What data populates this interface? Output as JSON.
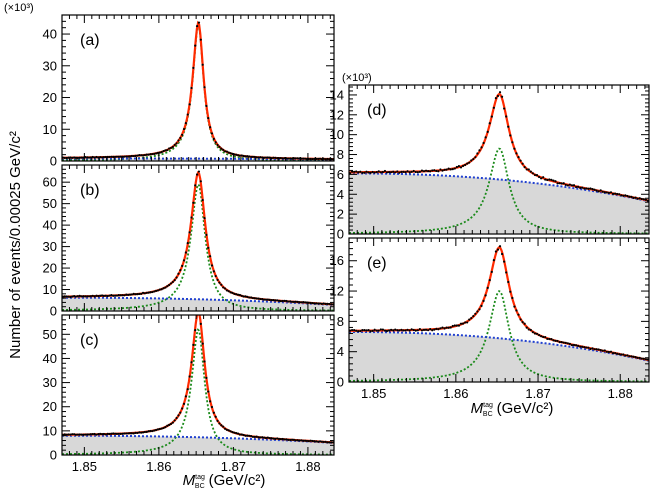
{
  "y_axis_title": "Number of events/0.00025 GeV/c²",
  "x_axis_title": "M",
  "x_axis_sup": "tag",
  "x_axis_sub": "BC",
  "x_axis_unit": "(GeV/c²)",
  "multiplier_label": "(×10³)",
  "colors": {
    "data": "#000000",
    "fit": "#ff2a00",
    "signal": "#1a8a1a",
    "background": "#2040d0",
    "fill": "#d8d8d8"
  },
  "chart_data": [
    {
      "id": "a",
      "label": "(a)",
      "type": "line",
      "xlim": [
        1.847,
        1.8835
      ],
      "xticks": [
        1.85,
        1.86,
        1.87,
        1.88
      ],
      "xtick_labels": [],
      "ylim": [
        0,
        46
      ],
      "yticks": [
        0,
        10,
        20,
        30,
        40
      ],
      "multiplier": "(×10³)",
      "series": [
        {
          "name": "data",
          "peak": 43.5,
          "bg_at_low": 0.8,
          "bg_at_high": 0.5
        },
        {
          "name": "signal",
          "peak": 42.8,
          "width": 0.00085
        },
        {
          "name": "background",
          "at_low": 0.8,
          "at_high": 0.5
        }
      ]
    },
    {
      "id": "b",
      "label": "(b)",
      "type": "line",
      "xlim": [
        1.847,
        1.8835
      ],
      "xticks": [
        1.85,
        1.86,
        1.87,
        1.88
      ],
      "xtick_labels": [],
      "ylim": [
        0,
        68
      ],
      "yticks": [
        0,
        10,
        20,
        30,
        40,
        50,
        60
      ],
      "multiplier": "",
      "series": [
        {
          "name": "data",
          "peak": 64.5
        },
        {
          "name": "signal",
          "peak": 59.0,
          "width": 0.0011
        },
        {
          "name": "background",
          "at_low": 6.2,
          "at_high": 2.8
        }
      ]
    },
    {
      "id": "c",
      "label": "(c)",
      "type": "line",
      "xlim": [
        1.847,
        1.8835
      ],
      "xticks": [
        1.85,
        1.86,
        1.87,
        1.88
      ],
      "xtick_labels": [
        "1.85",
        "1.86",
        "1.87",
        "1.88"
      ],
      "ylim": [
        0,
        58
      ],
      "yticks": [
        0,
        10,
        20,
        30,
        40,
        50
      ],
      "multiplier": "",
      "series": [
        {
          "name": "data",
          "peak": 58.0
        },
        {
          "name": "signal",
          "peak": 52.0,
          "width": 0.001
        },
        {
          "name": "background",
          "at_low": 8.0,
          "at_high": 5.0
        }
      ]
    },
    {
      "id": "d",
      "label": "(d)",
      "type": "line",
      "xlim": [
        1.847,
        1.8835
      ],
      "xticks": [
        1.85,
        1.86,
        1.87,
        1.88
      ],
      "xtick_labels": [],
      "ylim": [
        0,
        15
      ],
      "yticks": [
        0,
        2,
        4,
        6,
        8,
        10,
        12,
        14
      ],
      "multiplier": "(×10³)",
      "series": [
        {
          "name": "data",
          "peak": 14.3
        },
        {
          "name": "signal",
          "peak": 8.6,
          "width": 0.0014
        },
        {
          "name": "background",
          "at_low": 6.1,
          "at_high": 3.3
        }
      ]
    },
    {
      "id": "e",
      "label": "(e)",
      "type": "line",
      "xlim": [
        1.847,
        1.8835
      ],
      "xticks": [
        1.85,
        1.86,
        1.87,
        1.88
      ],
      "xtick_labels": [
        "1.85",
        "1.86",
        "1.87",
        "1.88"
      ],
      "ylim": [
        0,
        19
      ],
      "yticks": [
        0,
        4,
        8,
        12,
        16
      ],
      "multiplier": "",
      "series": [
        {
          "name": "data",
          "peak": 17.8
        },
        {
          "name": "signal",
          "peak": 12.0,
          "width": 0.0014
        },
        {
          "name": "background",
          "at_low": 6.6,
          "at_high": 2.8
        }
      ]
    }
  ]
}
